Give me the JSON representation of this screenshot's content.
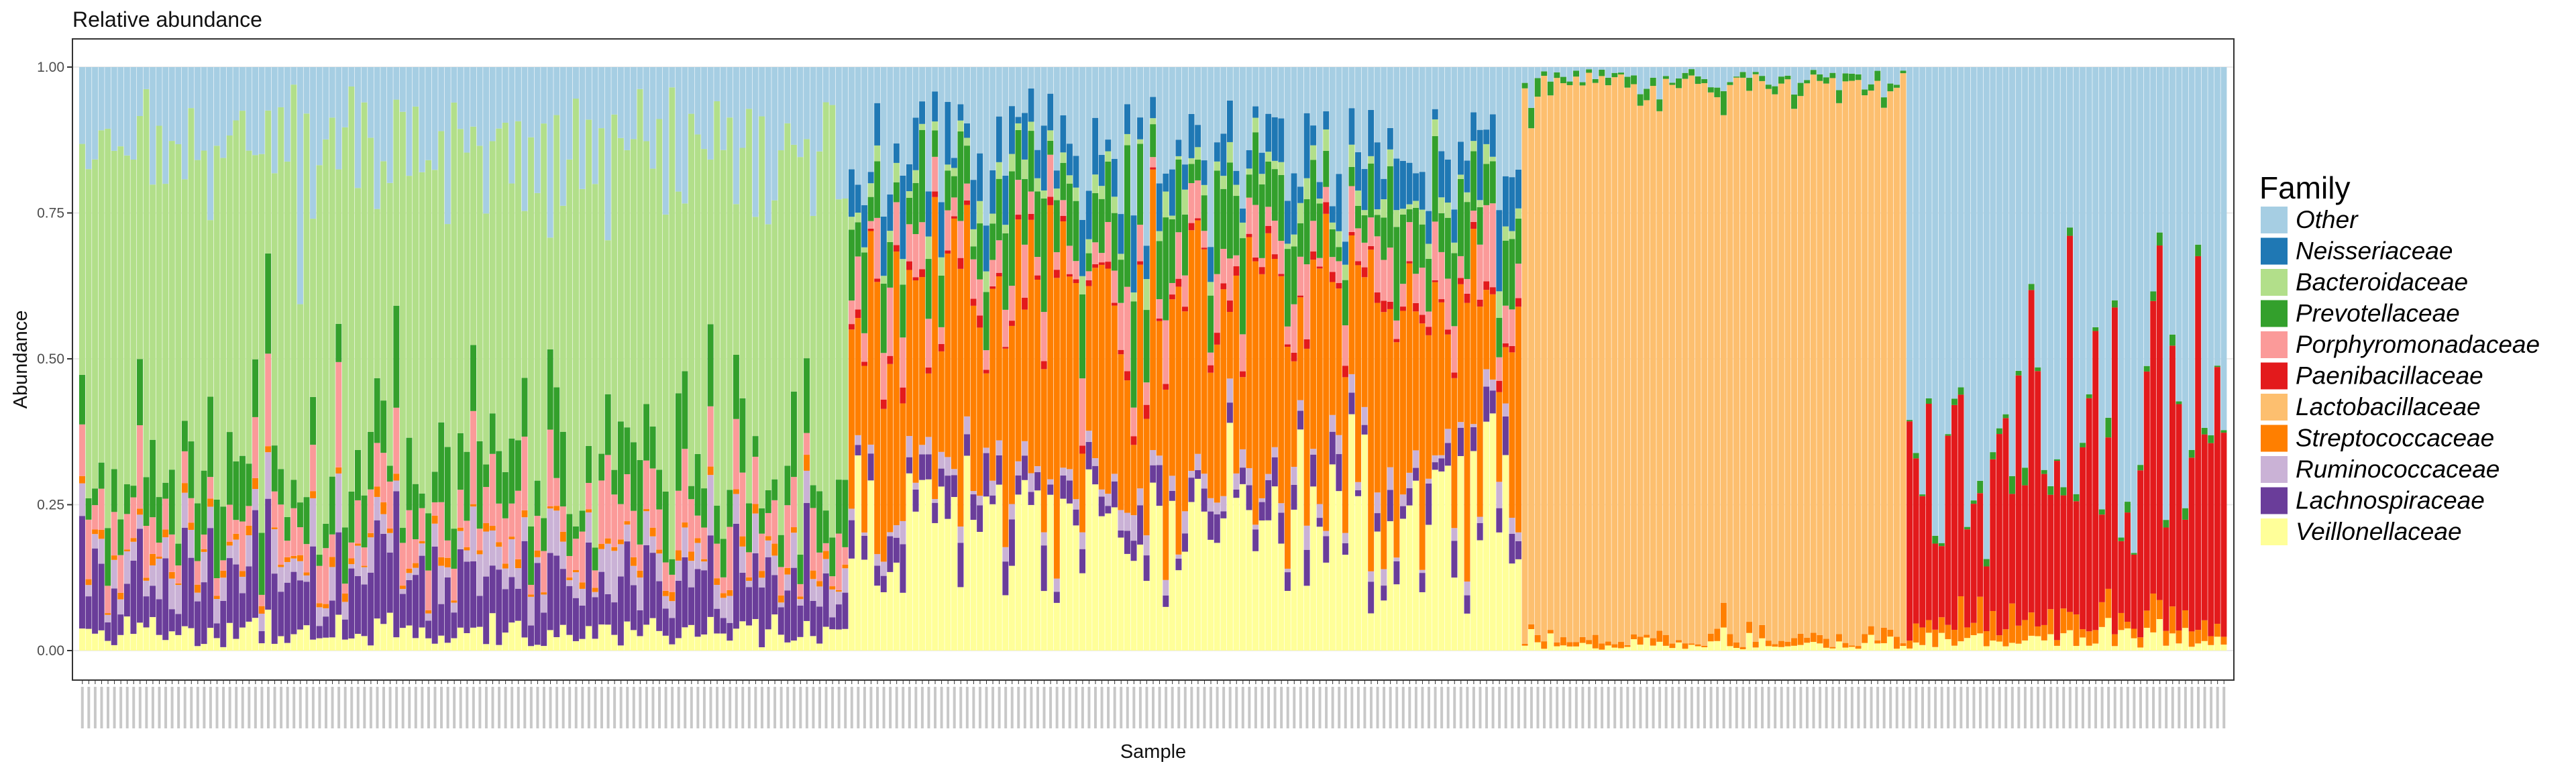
{
  "chart_data": {
    "type": "bar",
    "stacked": true,
    "title": "Relative abundance",
    "xlabel": "Sample",
    "ylabel": "Abundance",
    "ylim": [
      0,
      1
    ],
    "yticks": [
      "0.00",
      "0.25",
      "0.50",
      "0.75",
      "1.00"
    ],
    "grid": true,
    "legend": {
      "title": "Family",
      "position": "right",
      "entries": [
        {
          "name": "Other",
          "color": "#a6cee3"
        },
        {
          "name": "Neisseriaceae",
          "color": "#1f78b4"
        },
        {
          "name": "Bacteroidaceae",
          "color": "#b2df8a"
        },
        {
          "name": "Prevotellaceae",
          "color": "#33a02c"
        },
        {
          "name": "Porphyromonadaceae",
          "color": "#fb9a99"
        },
        {
          "name": "Paenibacillaceae",
          "color": "#e31a1c"
        },
        {
          "name": "Lactobacillaceae",
          "color": "#fdbf6f"
        },
        {
          "name": "Streptococcaceae",
          "color": "#ff7f00"
        },
        {
          "name": "Ruminococcaceae",
          "color": "#cab2d6"
        },
        {
          "name": "Lachnospiraceae",
          "color": "#6a3d9a"
        },
        {
          "name": "Veillonellaceae",
          "color": "#ffff99"
        }
      ]
    },
    "stack_order_bottom_to_top": [
      "Veillonellaceae",
      "Lachnospiraceae",
      "Ruminococcaceae",
      "Streptococcaceae",
      "Lactobacillaceae",
      "Paenibacillaceae",
      "Porphyromonadaceae",
      "Prevotellaceae",
      "Bacteroidaceae",
      "Neisseriaceae",
      "Other"
    ],
    "groups": [
      {
        "n_samples": 120,
        "mean_composition": {
          "Veillonellaceae": 0.03,
          "Lachnospiraceae": 0.1,
          "Ruminococcaceae": 0.04,
          "Streptococcaceae": 0.01,
          "Lactobacillaceae": 0.0,
          "Paenibacillaceae": 0.0,
          "Porphyromonadaceae": 0.06,
          "Prevotellaceae": 0.08,
          "Bacteroidaceae": 0.54,
          "Neisseriaceae": 0.0,
          "Other": 0.14
        }
      },
      {
        "n_samples": 105,
        "mean_composition": {
          "Veillonellaceae": 0.22,
          "Lachnospiraceae": 0.04,
          "Ruminococcaceae": 0.02,
          "Streptococcaceae": 0.34,
          "Lactobacillaceae": 0.0,
          "Paenibacillaceae": 0.01,
          "Porphyromonadaceae": 0.06,
          "Prevotellaceae": 0.09,
          "Bacteroidaceae": 0.02,
          "Neisseriaceae": 0.06,
          "Other": 0.14
        }
      },
      {
        "n_samples": 60,
        "mean_composition": {
          "Veillonellaceae": 0.01,
          "Lachnospiraceae": 0.0,
          "Ruminococcaceae": 0.0,
          "Streptococcaceae": 0.01,
          "Lactobacillaceae": 0.95,
          "Paenibacillaceae": 0.0,
          "Porphyromonadaceae": 0.0,
          "Prevotellaceae": 0.01,
          "Bacteroidaceae": 0.0,
          "Neisseriaceae": 0.0,
          "Other": 0.02
        }
      },
      {
        "n_samples": 50,
        "mean_composition": {
          "Veillonellaceae": 0.02,
          "Lachnospiraceae": 0.0,
          "Ruminococcaceae": 0.0,
          "Streptococcaceae": 0.03,
          "Lactobacillaceae": 0.0,
          "Paenibacillaceae": 0.34,
          "Porphyromonadaceae": 0.0,
          "Prevotellaceae": 0.01,
          "Bacteroidaceae": 0.0,
          "Neisseriaceae": 0.0,
          "Other": 0.6
        }
      }
    ]
  }
}
